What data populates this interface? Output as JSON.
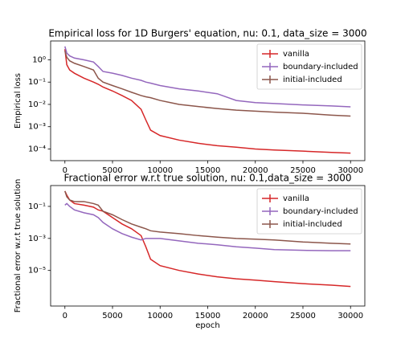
{
  "chart_data": [
    {
      "type": "line",
      "title": "Empirical loss for 1D Burgers' equation, nu: 0.1, data_size = 3000",
      "ylabel": "Empirical loss",
      "yscale": "log",
      "grid": false,
      "legend": "upper right",
      "x": [
        0,
        200,
        500,
        1000,
        2000,
        3000,
        3500,
        4000,
        5000,
        6000,
        7000,
        8000,
        8500,
        9000,
        10000,
        12000,
        14000,
        16000,
        18000,
        20000,
        22000,
        25000,
        28000,
        30000
      ],
      "xlim": [
        -1500,
        31500
      ],
      "xticks": [
        0,
        5000,
        10000,
        15000,
        20000,
        25000,
        30000
      ],
      "ylim": [
        3e-05,
        7
      ],
      "yticks": [
        {
          "value": 0.0001,
          "label": "10⁻⁴"
        },
        {
          "value": 0.001,
          "label": "10⁻³"
        },
        {
          "value": 0.01,
          "label": "10⁻²"
        },
        {
          "value": 0.1,
          "label": "10⁻¹"
        },
        {
          "value": 1,
          "label": "10⁰"
        }
      ],
      "series": [
        {
          "name": "vanilla",
          "color": "#d62728",
          "values": [
            3,
            0.6,
            0.35,
            0.25,
            0.15,
            0.1,
            0.08,
            0.06,
            0.04,
            0.025,
            0.015,
            0.006,
            0.002,
            0.0007,
            0.0004,
            0.00025,
            0.00018,
            0.00014,
            0.00012,
            0.0001,
            9e-05,
            8e-05,
            7e-05,
            6.5e-05
          ]
        },
        {
          "name": "boundary-included",
          "color": "#9467bd",
          "values": [
            4,
            2,
            1.5,
            1.2,
            1,
            0.8,
            0.5,
            0.3,
            0.25,
            0.2,
            0.15,
            0.12,
            0.1,
            0.09,
            0.07,
            0.05,
            0.04,
            0.03,
            0.015,
            0.012,
            0.011,
            0.0095,
            0.0085,
            0.0078
          ]
        },
        {
          "name": "initial-included",
          "color": "#8c564b",
          "values": [
            2.5,
            1.3,
            0.9,
            0.7,
            0.5,
            0.35,
            0.15,
            0.1,
            0.07,
            0.05,
            0.035,
            0.025,
            0.022,
            0.02,
            0.015,
            0.01,
            0.008,
            0.0065,
            0.0055,
            0.005,
            0.0045,
            0.004,
            0.0033,
            0.003
          ]
        }
      ]
    },
    {
      "type": "line",
      "title": "Fractional error w.r.t true solution, nu: 0.1,data_size = 3000",
      "xlabel": "epoch",
      "ylabel": "Fractional error w.r.t true solution",
      "yscale": "log",
      "grid": false,
      "legend": "upper right",
      "x": [
        0,
        200,
        500,
        1000,
        2000,
        3000,
        3500,
        4000,
        5000,
        6000,
        7000,
        8000,
        8500,
        9000,
        10000,
        12000,
        14000,
        16000,
        18000,
        20000,
        22000,
        25000,
        28000,
        30000
      ],
      "xlim": [
        -1500,
        31500
      ],
      "xticks": [
        0,
        5000,
        10000,
        15000,
        20000,
        25000,
        30000
      ],
      "ylim": [
        6e-08,
        2
      ],
      "yticks": [
        {
          "value": 1e-05,
          "label": "10⁻⁵"
        },
        {
          "value": 0.001,
          "label": "10⁻³"
        },
        {
          "value": 0.1,
          "label": "10⁻¹"
        }
      ],
      "series": [
        {
          "name": "vanilla",
          "color": "#d62728",
          "values": [
            0.9,
            0.5,
            0.25,
            0.15,
            0.12,
            0.09,
            0.06,
            0.05,
            0.02,
            0.008,
            0.004,
            0.0015,
            0.0003,
            5e-05,
            2e-05,
            1e-05,
            6e-06,
            4e-06,
            3e-06,
            2.5e-06,
            2e-06,
            1.5e-06,
            1.2e-06,
            1e-06
          ]
        },
        {
          "name": "boundary-included",
          "color": "#9467bd",
          "values": [
            0.12,
            0.15,
            0.1,
            0.06,
            0.04,
            0.03,
            0.02,
            0.01,
            0.004,
            0.002,
            0.0012,
            0.0008,
            0.001,
            0.001,
            0.001,
            0.0007,
            0.0005,
            0.0004,
            0.0003,
            0.00025,
            0.0002,
            0.00018,
            0.00017,
            0.00017
          ]
        },
        {
          "name": "initial-included",
          "color": "#8c564b",
          "values": [
            0.9,
            0.4,
            0.25,
            0.2,
            0.2,
            0.15,
            0.12,
            0.05,
            0.03,
            0.015,
            0.008,
            0.005,
            0.004,
            0.003,
            0.0025,
            0.002,
            0.0015,
            0.0012,
            0.001,
            0.0009,
            0.0008,
            0.0006,
            0.0005,
            0.00045
          ]
        }
      ]
    }
  ]
}
